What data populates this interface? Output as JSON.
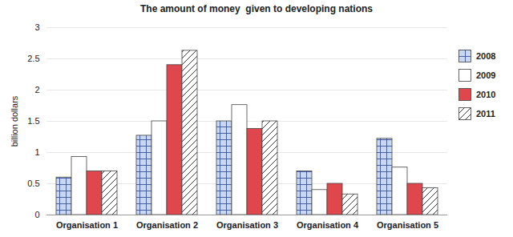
{
  "chart_data": {
    "type": "bar",
    "title": "The amount of money  given to developing nations",
    "ylabel": "billion dollars",
    "categories": [
      "Organisation 1",
      "Organisation 2",
      "Organisation 3",
      "Organisation 4",
      "Organisation 5"
    ],
    "series": [
      {
        "name": "2008",
        "color": "#c9d7f0",
        "values": [
          0.6,
          1.27,
          1.5,
          0.7,
          1.22
        ]
      },
      {
        "name": "2009",
        "color": "#ffffff",
        "values": [
          0.93,
          1.5,
          1.76,
          0.4,
          0.76
        ]
      },
      {
        "name": "2010",
        "color": "#e0474c",
        "values": [
          0.7,
          2.4,
          1.38,
          0.5,
          0.5
        ]
      },
      {
        "name": "2011",
        "color": "#ffffff",
        "values": [
          0.7,
          2.63,
          1.5,
          0.33,
          0.43
        ]
      }
    ],
    "ylim": [
      0,
      3
    ],
    "yticks": [
      0,
      0.5,
      1,
      1.5,
      2,
      2.5,
      3
    ],
    "grid": true,
    "legend": "right"
  }
}
